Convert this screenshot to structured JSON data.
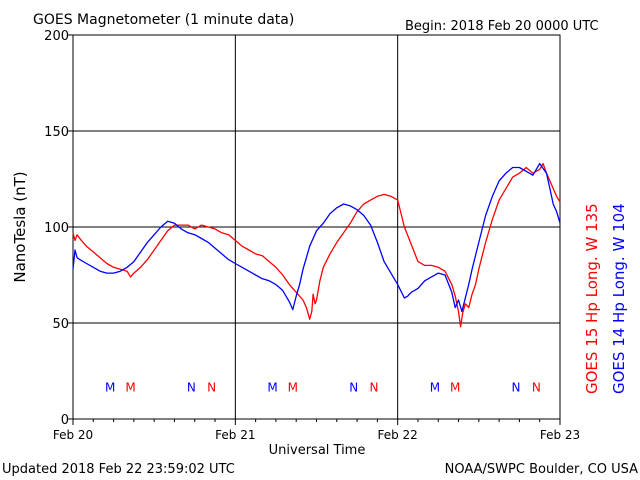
{
  "header": {
    "title": "GOES Magnetometer (1 minute data)",
    "begin": "Begin:  2018 Feb 20 0000 UTC"
  },
  "footer": {
    "updated": "Updated 2018 Feb 22 23:59:02 UTC",
    "source": "NOAA/SWPC Boulder, CO USA"
  },
  "chart_data": {
    "type": "line",
    "title": "GOES Magnetometer (1 minute data)",
    "xlabel": "Universal Time",
    "ylabel": "NanoTesla (nT)",
    "xlim": [
      0,
      72
    ],
    "ylim": [
      0,
      200
    ],
    "x_unit": "hours since 2018 Feb 20 0000 UTC",
    "x_ticks": [
      {
        "value": 0,
        "label": "Feb 20"
      },
      {
        "value": 24,
        "label": "Feb 21"
      },
      {
        "value": 48,
        "label": "Feb 22"
      },
      {
        "value": 72,
        "label": "Feb 23"
      }
    ],
    "y_ticks": [
      0,
      50,
      100,
      150,
      200
    ],
    "grid": true,
    "legend_placement": "right-vertical",
    "series": [
      {
        "name": "GOES 15 Hp  Long. W 135",
        "color": "#ff0000",
        "x": [
          0,
          0.3,
          0.6,
          1,
          1.5,
          2,
          3,
          4,
          5,
          6,
          7,
          8,
          8.5,
          9,
          10,
          11,
          12,
          13,
          14,
          15,
          16,
          17,
          18,
          19,
          20,
          21,
          22,
          23,
          24,
          25,
          26,
          27,
          28,
          29,
          30,
          31,
          32,
          33,
          34,
          34.5,
          35,
          35.3,
          35.5,
          35.8,
          36,
          36.5,
          37,
          38,
          39,
          40,
          41,
          42,
          43,
          44,
          45,
          46,
          47,
          48,
          49,
          50,
          51,
          52,
          53,
          54,
          55,
          56,
          56.5,
          57,
          57.3,
          57.6,
          58,
          58.5,
          59,
          59.5,
          60,
          61,
          62,
          63,
          64,
          65,
          66,
          67,
          68,
          69,
          69.5,
          70,
          70.5,
          71,
          71.5,
          72
        ],
        "y": [
          97,
          93,
          96,
          94,
          92,
          90,
          87,
          84,
          81,
          79,
          78,
          77,
          74,
          76,
          79,
          83,
          88,
          93,
          98,
          101,
          101,
          101,
          99,
          101,
          100,
          99,
          97,
          96,
          93,
          90,
          88,
          86,
          85,
          82,
          79,
          75,
          70,
          66,
          62,
          58,
          52,
          56,
          65,
          60,
          62,
          72,
          79,
          86,
          92,
          97,
          102,
          108,
          112,
          114,
          116,
          117,
          116,
          114,
          100,
          91,
          82,
          80,
          80,
          79,
          77,
          70,
          64,
          56,
          48,
          55,
          60,
          58,
          65,
          70,
          78,
          92,
          104,
          114,
          120,
          126,
          128,
          131,
          128,
          130,
          133,
          128,
          124,
          120,
          116,
          113
        ]
      },
      {
        "name": "GOES 14 Hp  Long. W 104",
        "color": "#0000ff",
        "x": [
          0,
          0.3,
          0.6,
          1,
          2,
          3,
          4,
          5,
          6,
          7,
          8,
          9,
          10,
          11,
          12,
          13,
          14,
          15,
          16,
          17,
          18,
          19,
          20,
          21,
          22,
          23,
          24,
          25,
          26,
          27,
          28,
          29,
          30,
          31,
          32,
          32.5,
          33,
          33.5,
          34,
          34.5,
          35,
          35.5,
          36,
          37,
          38,
          39,
          40,
          41,
          42,
          43,
          44,
          45,
          46,
          47,
          48,
          49,
          49.5,
          50,
          51,
          52,
          53,
          54,
          55,
          56,
          56.5,
          57,
          57.5,
          58,
          58.5,
          59,
          60,
          61,
          62,
          63,
          64,
          65,
          66,
          67,
          68,
          69,
          70,
          70.5,
          71,
          71.5,
          72
        ],
        "y": [
          78,
          88,
          84,
          83,
          81,
          79,
          77,
          76,
          76,
          77,
          79,
          82,
          87,
          92,
          96,
          100,
          103,
          102,
          99,
          97,
          96,
          94,
          92,
          89,
          86,
          83,
          81,
          79,
          77,
          75,
          73,
          72,
          70,
          67,
          61,
          57,
          64,
          70,
          78,
          84,
          90,
          94,
          98,
          102,
          107,
          110,
          112,
          111,
          109,
          106,
          101,
          92,
          82,
          76,
          70,
          63,
          64,
          66,
          68,
          72,
          74,
          76,
          75,
          66,
          58,
          62,
          56,
          63,
          70,
          78,
          92,
          106,
          116,
          124,
          128,
          131,
          131,
          129,
          127,
          133,
          128,
          120,
          112,
          108,
          102
        ]
      }
    ],
    "annotations": [
      {
        "text": "M",
        "x": 5.5,
        "color": "#0000ff"
      },
      {
        "text": "M",
        "x": 8.5,
        "color": "#ff0000"
      },
      {
        "text": "N",
        "x": 17.5,
        "color": "#0000ff"
      },
      {
        "text": "N",
        "x": 20.5,
        "color": "#ff0000"
      },
      {
        "text": "M",
        "x": 29.5,
        "color": "#0000ff"
      },
      {
        "text": "M",
        "x": 32.5,
        "color": "#ff0000"
      },
      {
        "text": "N",
        "x": 41.5,
        "color": "#0000ff"
      },
      {
        "text": "N",
        "x": 44.5,
        "color": "#ff0000"
      },
      {
        "text": "M",
        "x": 53.5,
        "color": "#0000ff"
      },
      {
        "text": "M",
        "x": 56.5,
        "color": "#ff0000"
      },
      {
        "text": "N",
        "x": 65.5,
        "color": "#0000ff"
      },
      {
        "text": "N",
        "x": 68.5,
        "color": "#ff0000"
      }
    ],
    "annotation_y": 17
  }
}
